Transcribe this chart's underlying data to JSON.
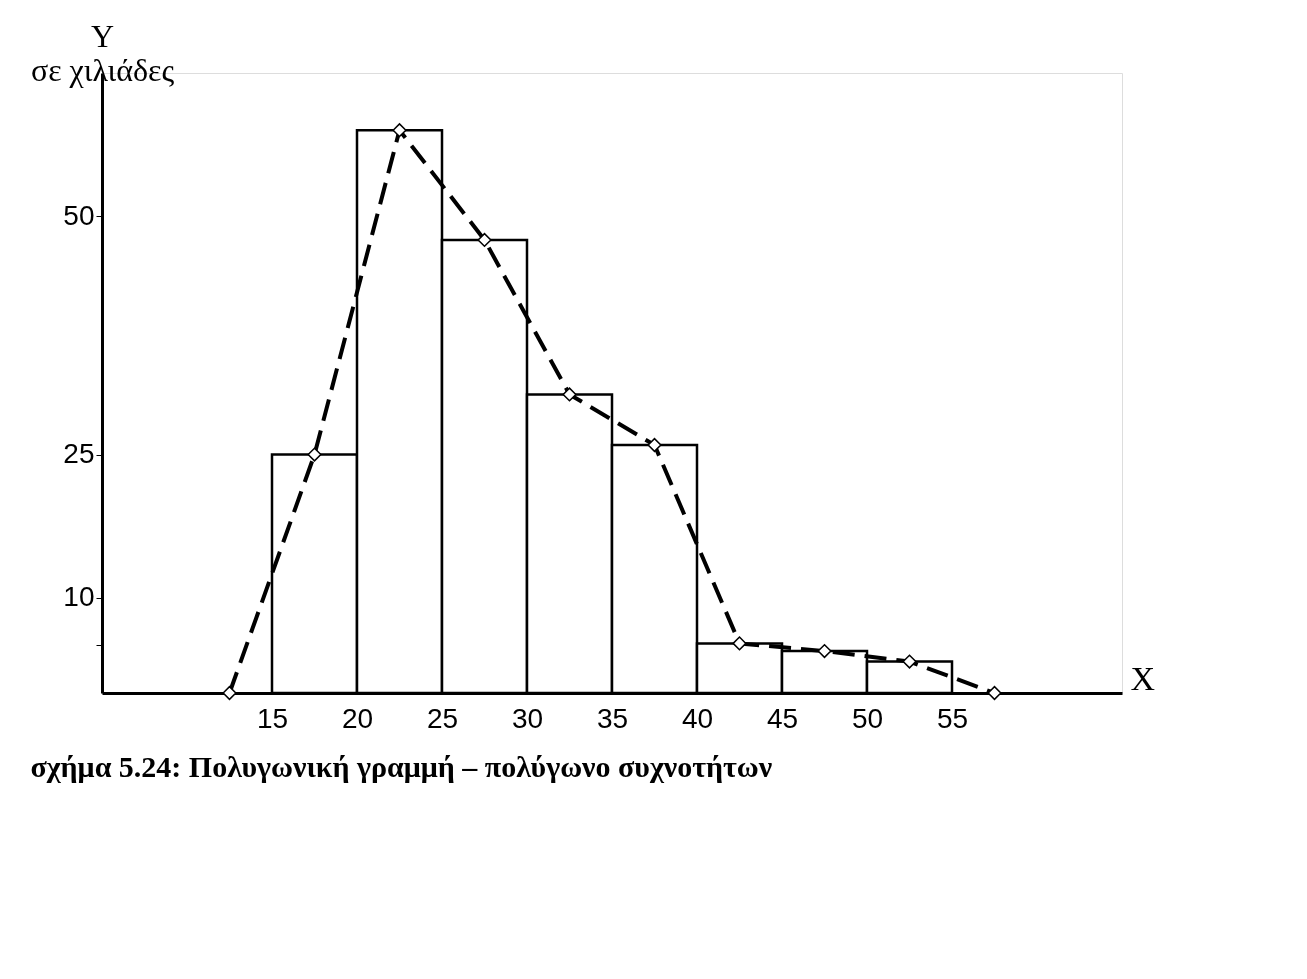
{
  "chart_data": {
    "type": "histogram",
    "title": "σχήμα 5.24: Πολυγωνική γραμμή – πολύγωνο συχνοτήτων",
    "xlabel": "X",
    "ylabel": "Y σε χιλιάδες",
    "bins": [
      15,
      20,
      25,
      30,
      35,
      40,
      45,
      50,
      55
    ],
    "values": [
      25,
      59,
      47.5,
      31.3,
      26,
      5.2,
      4.4,
      3.3
    ],
    "color": "#ffffff",
    "series": [
      {
        "type": "line",
        "color": "#000000",
        "line_style": "dashed",
        "marker": "diamond",
        "x": [
          12.5,
          17.5,
          22.5,
          27.5,
          32.5,
          37.5,
          42.5,
          47.5,
          52.5,
          57.5
        ],
        "values": [
          0,
          25,
          59,
          47.5,
          31.3,
          26,
          5.2,
          4.4,
          3.3,
          0
        ]
      }
    ],
    "xlim": [
      5,
      65
    ],
    "ylim": [
      0,
      65
    ],
    "xticks": [
      15,
      20,
      25,
      30,
      35,
      40,
      45,
      50,
      55
    ],
    "yticks": [
      {
        "value": 5,
        "label": null
      },
      10,
      25,
      50
    ]
  }
}
